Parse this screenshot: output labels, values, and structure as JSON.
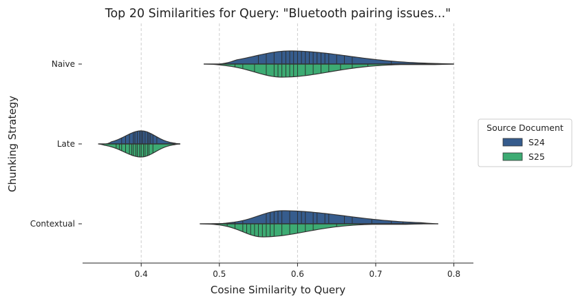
{
  "chart_data": {
    "type": "violin",
    "title": "Top 20 Similarities for Query: \"Bluetooth pairing issues...\"",
    "xlabel": "Cosine Similarity to Query",
    "ylabel": "Chunking Strategy",
    "xlim": [
      0.325,
      0.825
    ],
    "xticks": [
      0.4,
      0.5,
      0.6,
      0.7,
      0.8
    ],
    "xtick_labels": [
      "0.4",
      "0.5",
      "0.6",
      "0.7",
      "0.8"
    ],
    "grid": "x-dashed",
    "categories": [
      "Naive",
      "Late",
      "Contextual"
    ],
    "legend": {
      "title": "Source Document",
      "placement": "right",
      "entries": [
        "S24",
        "S25"
      ]
    },
    "series": [
      {
        "name": "S24",
        "color": "#365c8d",
        "side": "top",
        "groups": [
          {
            "category": "Naive",
            "range": [
              0.5,
              0.8
            ],
            "values": [
              0.55,
              0.56,
              0.57,
              0.58,
              0.585,
              0.59,
              0.595,
              0.6,
              0.605,
              0.61,
              0.615,
              0.62,
              0.625,
              0.63,
              0.635,
              0.64,
              0.65,
              0.66,
              0.67,
              0.72
            ]
          },
          {
            "category": "Late",
            "range": [
              0.355,
              0.45
            ],
            "values": [
              0.375,
              0.38,
              0.385,
              0.39,
              0.392,
              0.395,
              0.398,
              0.4,
              0.402,
              0.405,
              0.408,
              0.41,
              0.412,
              0.415,
              0.42
            ]
          },
          {
            "category": "Contextual",
            "range": [
              0.49,
              0.78
            ],
            "values": [
              0.52,
              0.53,
              0.56,
              0.565,
              0.57,
              0.575,
              0.58,
              0.59,
              0.6,
              0.605,
              0.61,
              0.62,
              0.625,
              0.635,
              0.64,
              0.66,
              0.67,
              0.695,
              0.72,
              0.735
            ]
          }
        ]
      },
      {
        "name": "S25",
        "color": "#3dab73",
        "side": "bottom",
        "groups": [
          {
            "category": "Naive",
            "range": [
              0.48,
              0.8
            ],
            "values": [
              0.52,
              0.53,
              0.545,
              0.56,
              0.57,
              0.575,
              0.58,
              0.585,
              0.59,
              0.595,
              0.6,
              0.61,
              0.62,
              0.63,
              0.64,
              0.655,
              0.67,
              0.69,
              0.72
            ]
          },
          {
            "category": "Late",
            "range": [
              0.345,
              0.45
            ],
            "values": [
              0.368,
              0.372,
              0.375,
              0.38,
              0.385,
              0.388,
              0.39,
              0.393,
              0.395,
              0.398,
              0.4,
              0.403,
              0.405,
              0.408,
              0.41,
              0.415
            ]
          },
          {
            "category": "Contextual",
            "range": [
              0.475,
              0.76
            ],
            "values": [
              0.51,
              0.52,
              0.53,
              0.535,
              0.54,
              0.545,
              0.55,
              0.555,
              0.56,
              0.565,
              0.57,
              0.58,
              0.59,
              0.6,
              0.61,
              0.62,
              0.65,
              0.68
            ]
          }
        ]
      }
    ],
    "violin_shape": [
      {
        "category": "Naive",
        "series": "S24",
        "mode": 0.59,
        "width_left": 0.045,
        "width_right": 0.075
      },
      {
        "category": "Naive",
        "series": "S25",
        "mode": 0.58,
        "width_left": 0.035,
        "width_right": 0.06
      },
      {
        "category": "Late",
        "series": "S24",
        "mode": 0.4,
        "width_left": 0.02,
        "width_right": 0.018
      },
      {
        "category": "Late",
        "series": "S25",
        "mode": 0.4,
        "width_left": 0.022,
        "width_right": 0.018
      },
      {
        "category": "Contextual",
        "series": "S24",
        "mode": 0.58,
        "width_left": 0.03,
        "width_right": 0.08
      },
      {
        "category": "Contextual",
        "series": "S25",
        "mode": 0.555,
        "width_left": 0.025,
        "width_right": 0.055
      }
    ]
  }
}
